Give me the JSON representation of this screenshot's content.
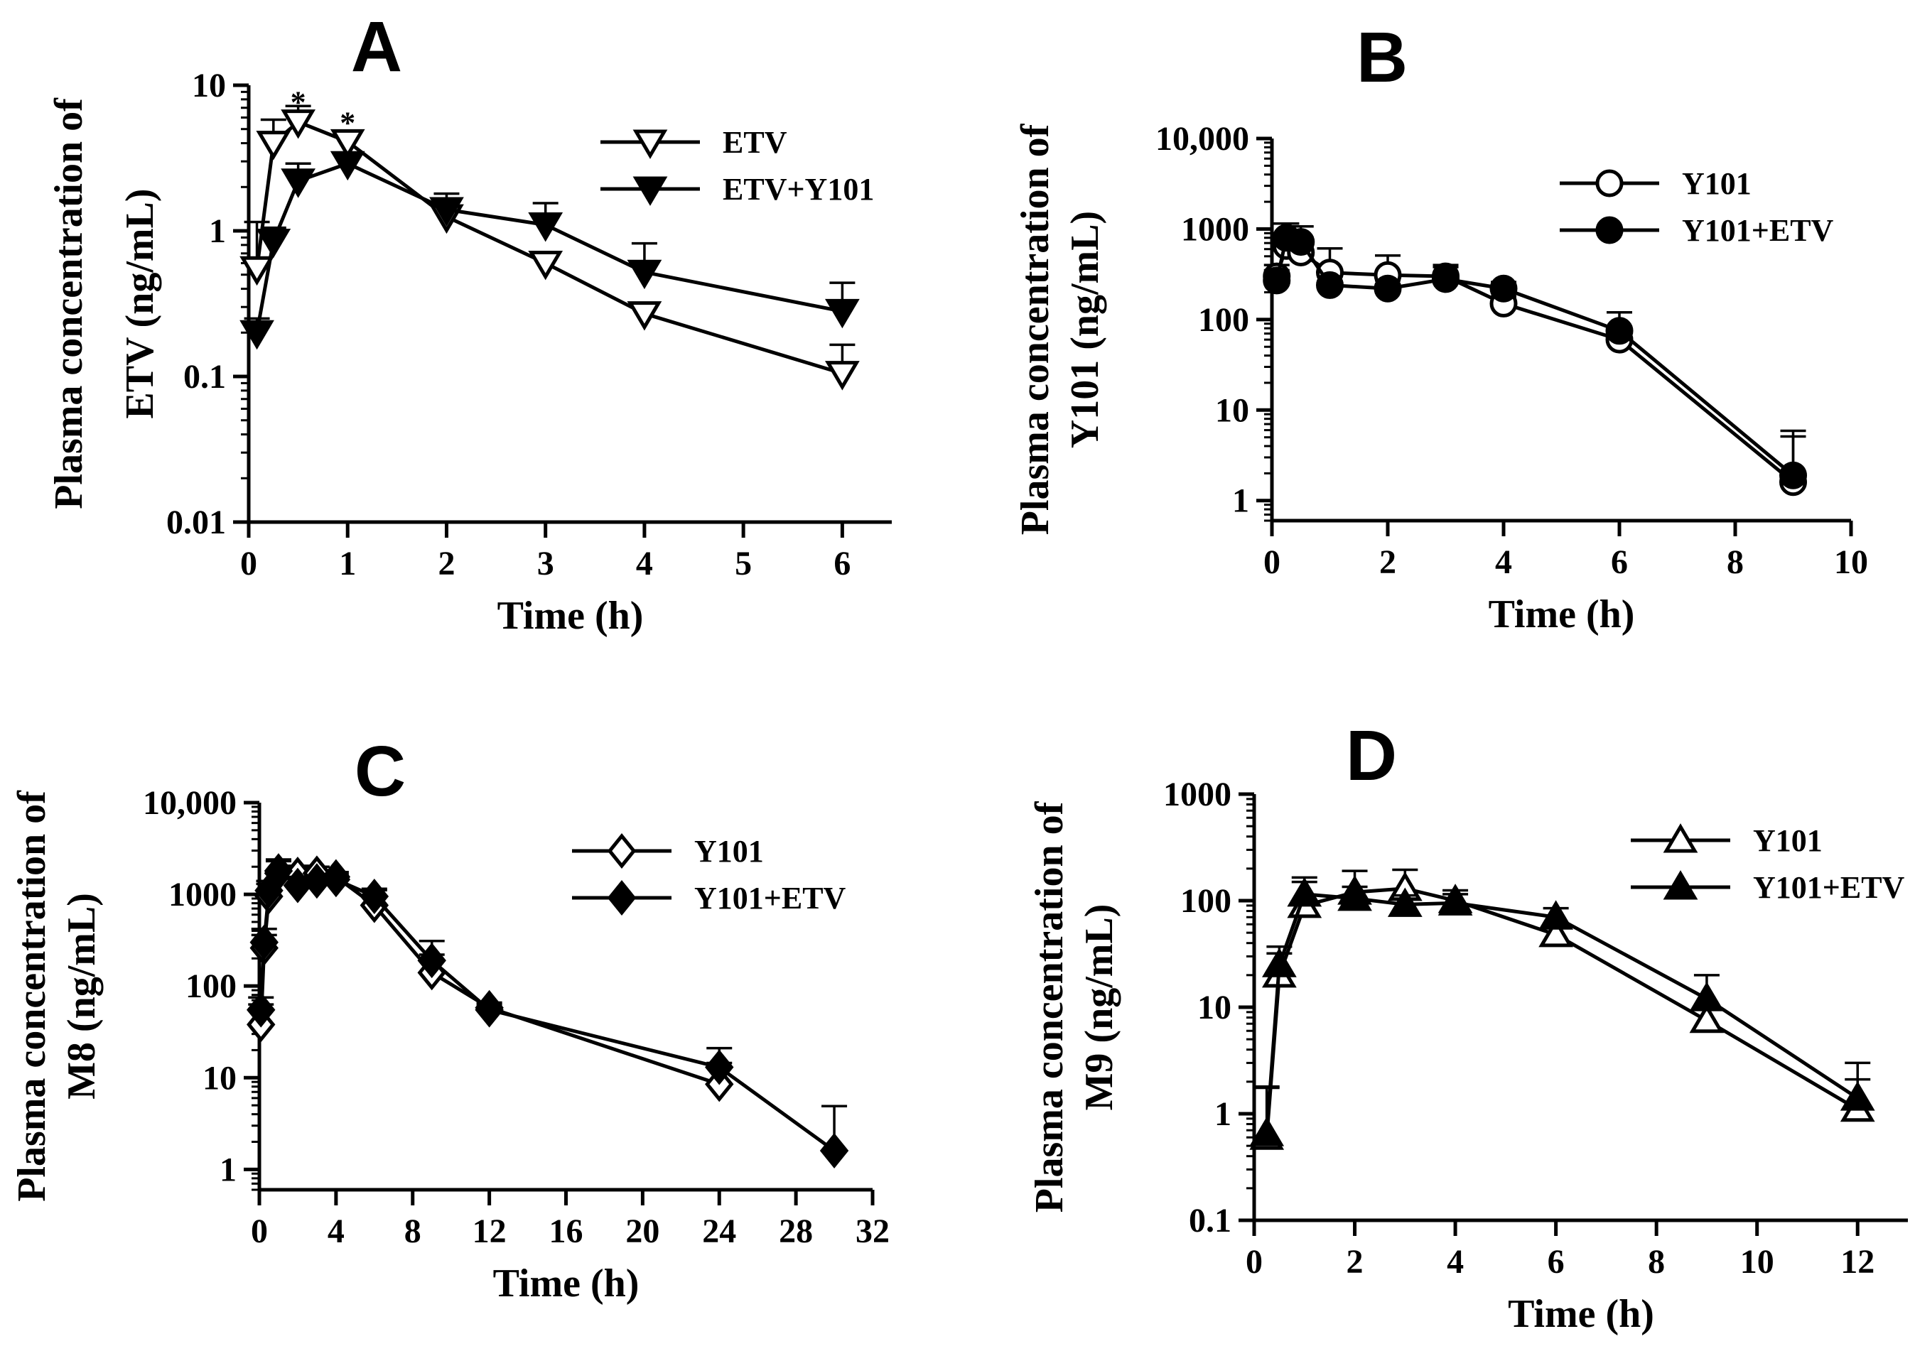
{
  "chart_data": [
    {
      "type": "line",
      "panel": "A",
      "title": "",
      "xlabel": "Time (h)",
      "ylabel": [
        "Plasma concentration of",
        "ETV (ng/mL)"
      ],
      "yscale": "log",
      "xlim": [
        0,
        6.5
      ],
      "ylim": [
        0.01,
        10
      ],
      "xticks": [
        0,
        1,
        2,
        3,
        4,
        5,
        6
      ],
      "xtick_labels": [
        "0",
        "1",
        "2",
        "3",
        "4",
        "5",
        "6"
      ],
      "yticks": [
        0.01,
        0.1,
        1,
        10
      ],
      "ytick_labels": [
        "0.01",
        "0.1",
        "1",
        "10"
      ],
      "legend": "top-right",
      "series": [
        {
          "name": "ETV",
          "marker": "triangle-down-open",
          "x": [
            0.083,
            0.25,
            0.5,
            1,
            2,
            3,
            4,
            6
          ],
          "y": [
            0.55,
            4.0,
            5.6,
            4.1,
            1.25,
            0.6,
            0.27,
            0.105
          ],
          "err": [
            0.6,
            1.8,
            1.6,
            0.6,
            0.2,
            0.1,
            0.03,
            0.06
          ]
        },
        {
          "name": "ETV+Y101",
          "marker": "triangle-down-filled",
          "x": [
            0.083,
            0.25,
            0.5,
            1,
            2,
            3,
            4,
            6
          ],
          "y": [
            0.2,
            0.85,
            2.2,
            2.9,
            1.4,
            1.1,
            0.52,
            0.28
          ],
          "err": [
            0.05,
            0.2,
            0.7,
            0.5,
            0.4,
            0.45,
            0.3,
            0.16
          ]
        }
      ],
      "annotations": [
        {
          "text": "*",
          "x": 0.5,
          "y": 8.3
        },
        {
          "text": "*",
          "x": 1,
          "y": 6.0
        }
      ]
    },
    {
      "type": "line",
      "panel": "B",
      "title": "",
      "xlabel": "Time (h)",
      "ylabel": [
        "Plasma concentration of",
        "Y101 (ng/mL)"
      ],
      "yscale": "log",
      "xlim": [
        0,
        10
      ],
      "ylim": [
        0.6,
        10000
      ],
      "xticks": [
        0,
        2,
        4,
        6,
        8,
        10
      ],
      "xtick_labels": [
        "0",
        "2",
        "4",
        "6",
        "8",
        "10"
      ],
      "yticks": [
        1,
        10,
        100,
        1000,
        10000
      ],
      "ytick_labels": [
        "1",
        "10",
        "100",
        "1000",
        "10,000"
      ],
      "legend": "top-right",
      "series": [
        {
          "name": "Y101",
          "marker": "circle-open",
          "x": [
            0.083,
            0.25,
            0.5,
            1,
            2,
            3,
            4,
            6,
            9
          ],
          "y": [
            300,
            650,
            550,
            330,
            310,
            300,
            150,
            60,
            1.6
          ],
          "err": [
            100,
            250,
            250,
            280,
            200,
            100,
            30,
            20,
            3.5
          ]
        },
        {
          "name": "Y101+ETV",
          "marker": "circle-filled",
          "x": [
            0.083,
            0.25,
            0.5,
            1,
            2,
            3,
            4,
            6,
            9
          ],
          "y": [
            270,
            800,
            720,
            240,
            220,
            280,
            220,
            75,
            1.9
          ],
          "err": [
            80,
            350,
            350,
            60,
            50,
            100,
            40,
            45,
            4.0
          ]
        }
      ]
    },
    {
      "type": "line",
      "panel": "C",
      "title": "",
      "xlabel": "Time (h)",
      "ylabel": [
        "Plasma concentration of",
        "M8 (ng/mL)"
      ],
      "yscale": "log",
      "xlim": [
        0,
        32
      ],
      "ylim": [
        0.6,
        10000
      ],
      "xticks": [
        0,
        4,
        8,
        12,
        16,
        20,
        24,
        28,
        32
      ],
      "xtick_labels": [
        "0",
        "4",
        "8",
        "12",
        "16",
        "20",
        "24",
        "28",
        "32"
      ],
      "yticks": [
        1,
        10,
        100,
        1000,
        10000
      ],
      "ytick_labels": [
        "1",
        "10",
        "100",
        "1000",
        "10,000"
      ],
      "legend": "top-right",
      "series": [
        {
          "name": "Y101",
          "marker": "diamond-open",
          "x": [
            0.083,
            0.25,
            0.5,
            1,
            2,
            3,
            4,
            6,
            9,
            12,
            24
          ],
          "y": [
            38,
            260,
            950,
            1700,
            1650,
            1700,
            1550,
            760,
            140,
            58,
            8.5
          ],
          "err": [
            25,
            100,
            350,
            700,
            400,
            300,
            200,
            350,
            80,
            8,
            6
          ]
        },
        {
          "name": "Y101+ETV",
          "marker": "diamond-filled",
          "x": [
            0.083,
            0.25,
            0.5,
            1,
            2,
            3,
            4,
            6,
            9,
            12,
            24,
            30
          ],
          "y": [
            55,
            300,
            1100,
            1800,
            1250,
            1400,
            1450,
            950,
            190,
            55,
            13,
            1.6
          ],
          "err": [
            20,
            120,
            300,
            500,
            300,
            200,
            200,
            200,
            120,
            8,
            8,
            3.3
          ]
        }
      ]
    },
    {
      "type": "line",
      "panel": "D",
      "title": "",
      "xlabel": "Time (h)",
      "ylabel": [
        "Plasma concentration of",
        "M9 (ng/mL)"
      ],
      "yscale": "log",
      "xlim": [
        0,
        13
      ],
      "ylim": [
        0.1,
        1000
      ],
      "xticks": [
        0,
        2,
        4,
        6,
        8,
        10,
        12
      ],
      "xtick_labels": [
        "0",
        "2",
        "4",
        "6",
        "8",
        "10",
        "12"
      ],
      "yticks": [
        0.1,
        1,
        10,
        100,
        1000
      ],
      "ytick_labels": [
        "0.1",
        "1",
        "10",
        "100",
        "1000"
      ],
      "legend": "top-right",
      "series": [
        {
          "name": "Y101",
          "marker": "triangle-up-open",
          "x": [
            0.25,
            0.5,
            1,
            2,
            3,
            4,
            6,
            9,
            12
          ],
          "y": [
            0.6,
            20,
            90,
            120,
            130,
            100,
            48,
            7.5,
            1.1
          ],
          "err": [
            1.2,
            12,
            60,
            70,
            65,
            25,
            10,
            3,
            1.0
          ]
        },
        {
          "name": "Y101+ETV",
          "marker": "triangle-up-filled",
          "x": [
            0.25,
            0.5,
            1,
            2,
            3,
            4,
            6,
            9,
            12
          ],
          "y": [
            0.65,
            25,
            115,
            105,
            92,
            95,
            70,
            12,
            1.4
          ],
          "err": [
            1.1,
            12,
            50,
            30,
            20,
            20,
            15,
            8,
            1.6
          ]
        }
      ]
    }
  ]
}
